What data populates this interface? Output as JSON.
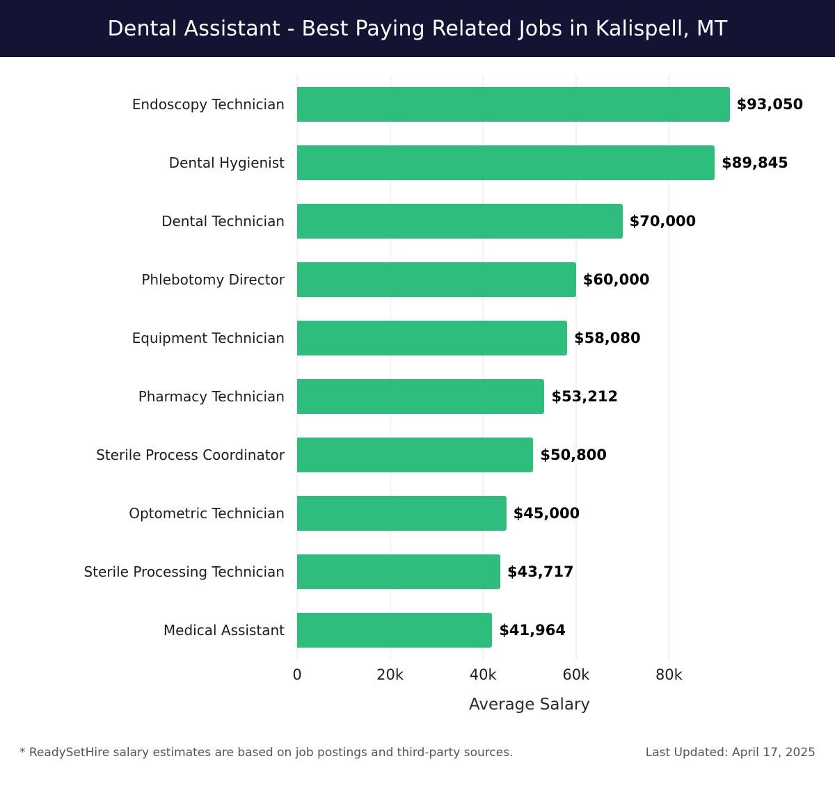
{
  "header": {
    "title": "Dental Assistant - Best Paying Related Jobs in Kalispell, MT"
  },
  "colors": {
    "header_bg": "#131334",
    "bar": "#2fbd7e",
    "gridline": "#e4e4e4"
  },
  "chart_data": {
    "type": "bar",
    "orientation": "horizontal",
    "title": "Dental Assistant - Best Paying Related Jobs in Kalispell, MT",
    "categories": [
      "Endoscopy Technician",
      "Dental Hygienist",
      "Dental Technician",
      "Phlebotomy Director",
      "Equipment Technician",
      "Pharmacy Technician",
      "Sterile Process Coordinator",
      "Optometric Technician",
      "Sterile Processing Technician",
      "Medical Assistant"
    ],
    "values": [
      93050,
      89845,
      70000,
      60000,
      58080,
      53212,
      50800,
      45000,
      43717,
      41964
    ],
    "value_labels": [
      "$93,050",
      "$89,845",
      "$70,000",
      "$60,000",
      "$58,080",
      "$53,212",
      "$50,800",
      "$45,000",
      "$43,717",
      "$41,964"
    ],
    "xlabel": "Average Salary",
    "ylabel": "",
    "xlim": [
      0,
      100000
    ],
    "xticks": [
      0,
      20000,
      40000,
      60000,
      80000
    ],
    "xtick_labels": [
      "0",
      "20k",
      "40k",
      "60k",
      "80k"
    ],
    "grid": true,
    "legend": false
  },
  "footer": {
    "note": "* ReadySetHire salary estimates are based on job postings and third-party sources.",
    "updated": "Last Updated: April 17, 2025"
  }
}
